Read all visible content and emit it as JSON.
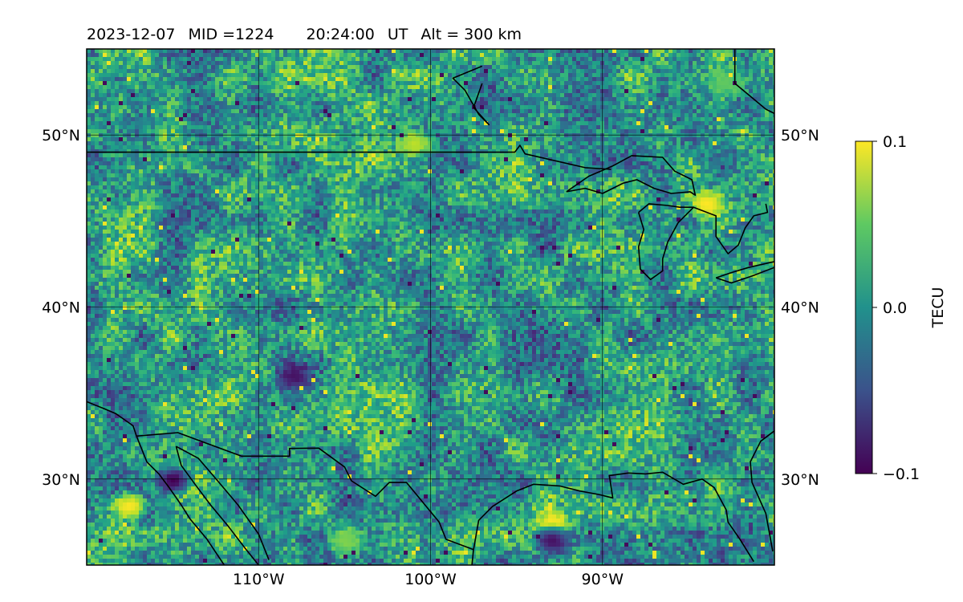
{
  "header": {
    "date": "2023-12-07",
    "mid": "MID =1224",
    "time": "20:24:00",
    "ut_label": "UT",
    "alt": "Alt = 300 km"
  },
  "map": {
    "lon_range": [
      -120,
      -80
    ],
    "lat_range": [
      25,
      55
    ],
    "lon_ticks": [
      {
        "value": -110,
        "label": "110°W"
      },
      {
        "value": -100,
        "label": "100°W"
      },
      {
        "value": -90,
        "label": "90°W"
      }
    ],
    "lat_ticks": [
      {
        "value": 30,
        "label": "30°N"
      },
      {
        "value": 40,
        "label": "40°N"
      },
      {
        "value": 50,
        "label": "50°N"
      }
    ],
    "gridlines": true,
    "projection": "plate-carree"
  },
  "colorbar": {
    "label": "TECU",
    "colormap": "viridis",
    "min": -0.1,
    "max": 0.1,
    "ticks": [
      {
        "value": 0.1,
        "label": "0.1"
      },
      {
        "value": 0.0,
        "label": "0.0"
      },
      {
        "value": -0.1,
        "label": "−0.1"
      }
    ]
  },
  "chart_data": {
    "type": "heatmap",
    "x_axis": "longitude",
    "y_axis": "latitude",
    "value_unit": "TECU",
    "vmin": -0.1,
    "vmax": 0.1,
    "notable_features": [
      {
        "lon": -117.5,
        "lat": 28.5,
        "value": 0.1
      },
      {
        "lon": -93,
        "lat": 27.5,
        "value": 0.1
      },
      {
        "lon": -115,
        "lat": 30,
        "value": -0.1
      },
      {
        "lon": -84,
        "lat": 46,
        "value": 0.1
      },
      {
        "lon": -101,
        "lat": 49.5,
        "value": 0.08
      },
      {
        "lon": -83,
        "lat": 53,
        "value": 0.05
      },
      {
        "lon": -93,
        "lat": 26.5,
        "value": -0.09
      },
      {
        "lon": -105,
        "lat": 26.5,
        "value": 0.06
      },
      {
        "lon": -108,
        "lat": 36,
        "value": -0.09
      }
    ]
  }
}
